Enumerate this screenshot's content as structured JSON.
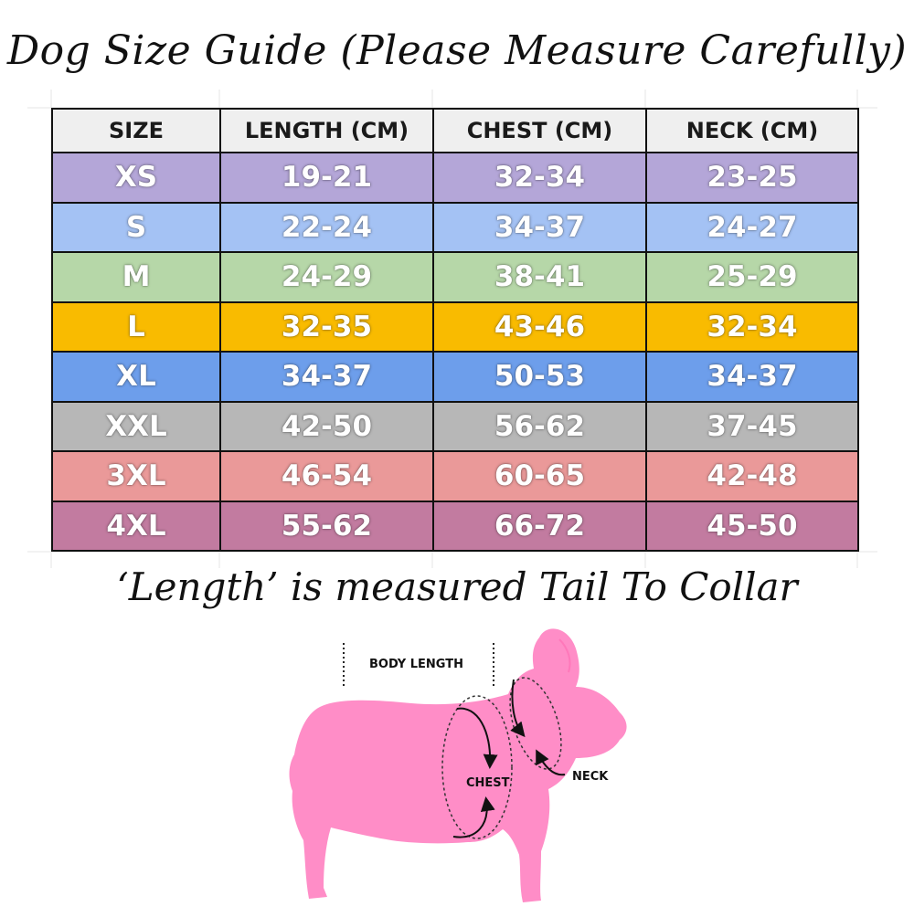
{
  "title": "Dog Size Guide (Please Measure Carefully)",
  "table": {
    "headers": [
      "SIZE",
      "LENGTH (CM)",
      "CHEST (CM)",
      "NECK (CM)"
    ],
    "rows": [
      {
        "cells": [
          "XS",
          "19-21",
          "32-34",
          "23-25"
        ],
        "color": "#b4a6d8"
      },
      {
        "cells": [
          "S",
          "22-24",
          "34-37",
          "24-27"
        ],
        "color": "#a4c2f4"
      },
      {
        "cells": [
          "M",
          "24-29",
          "38-41",
          "25-29"
        ],
        "color": "#b6d7a8"
      },
      {
        "cells": [
          "L",
          "32-35",
          "43-46",
          "32-34"
        ],
        "color": "#f9bb00"
      },
      {
        "cells": [
          "XL",
          "34-37",
          "50-53",
          "34-37"
        ],
        "color": "#6d9eeb"
      },
      {
        "cells": [
          "XXL",
          "42-50",
          "56-62",
          "37-45"
        ],
        "color": "#b7b7b7"
      },
      {
        "cells": [
          "3XL",
          "46-54",
          "60-65",
          "42-48"
        ],
        "color": "#ea9999"
      },
      {
        "cells": [
          "4XL",
          "55-62",
          "66-72",
          "45-50"
        ],
        "color": "#c27ba0"
      }
    ]
  },
  "subtitle": "‘Length’ is measured Tail To Collar",
  "illustration": {
    "body_length_label": "BODY LENGTH",
    "chest_label": "CHEST",
    "neck_label": "NECK",
    "dog_color": "#ff8dc7"
  }
}
